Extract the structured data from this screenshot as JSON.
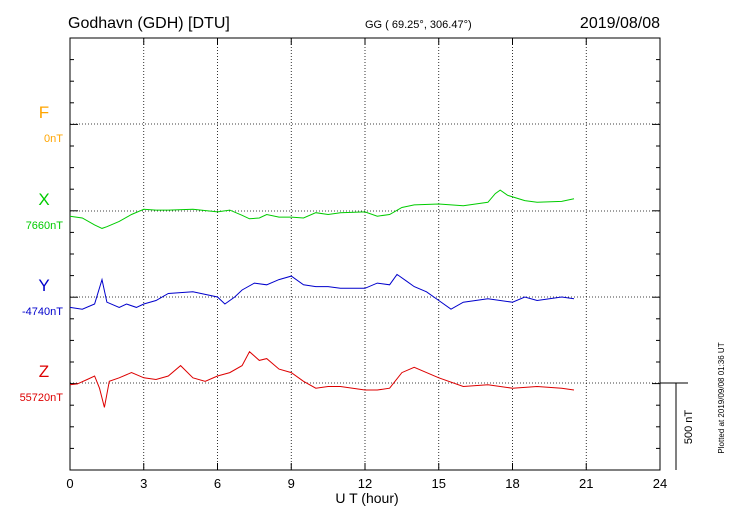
{
  "header": {
    "station": "Godhavn (GDH)  [DTU]",
    "coords": "GG ( 69.25°, 306.47°)",
    "date": "2019/08/08"
  },
  "side_note": "Plotted at 2019/09/08 01:36 UT",
  "scale_bar_label": "500 nT",
  "colors": {
    "F": "#ffa500",
    "X": "#00cc00",
    "Y": "#0000cc",
    "Z": "#dd0000",
    "axis": "#000000"
  },
  "chart_data": {
    "type": "line",
    "title": "Godhavn (GDH)  [DTU]",
    "xlabel": "U T (hour)",
    "xlim": [
      0,
      24
    ],
    "xticks": [
      0,
      3,
      6,
      9,
      12,
      15,
      18,
      21,
      24
    ],
    "scale_bar_nT": 500,
    "grid": true,
    "series": [
      {
        "name": "F",
        "baseline_label": "0nT",
        "x": [],
        "y": []
      },
      {
        "name": "X",
        "baseline_label": "7660nT",
        "x": [
          0,
          0.5,
          1,
          1.3,
          1.5,
          2,
          2.5,
          3,
          3.5,
          4,
          5,
          6,
          6.5,
          7,
          7.3,
          7.7,
          8,
          8.5,
          9,
          9.5,
          10,
          10.5,
          11,
          12,
          12.5,
          13,
          13.5,
          14,
          15,
          16,
          17,
          17.3,
          17.5,
          17.8,
          18.5,
          19,
          20,
          20.5
        ],
        "y": [
          -30,
          -40,
          -80,
          -100,
          -90,
          -60,
          -20,
          10,
          5,
          5,
          10,
          -5,
          5,
          -25,
          -45,
          -40,
          -20,
          -35,
          -35,
          -40,
          -10,
          -20,
          -10,
          -5,
          -30,
          -20,
          20,
          35,
          40,
          30,
          50,
          100,
          120,
          90,
          60,
          50,
          55,
          70
        ]
      },
      {
        "name": "Y",
        "baseline_label": "-4740nT",
        "x": [
          0,
          0.5,
          1,
          1.3,
          1.5,
          2,
          2.3,
          2.7,
          3,
          3.5,
          4,
          5,
          6,
          6.3,
          6.7,
          7,
          7.5,
          8,
          8.5,
          9,
          9.5,
          10,
          10.5,
          11,
          12,
          12.5,
          13,
          13.3,
          13.7,
          14,
          14.5,
          15,
          15.5,
          16,
          17,
          18,
          18.5,
          19,
          20,
          20.5
        ],
        "y": [
          -60,
          -70,
          -40,
          100,
          -30,
          -60,
          -40,
          -60,
          -40,
          -20,
          20,
          30,
          0,
          -40,
          0,
          40,
          80,
          70,
          100,
          120,
          70,
          60,
          60,
          50,
          50,
          80,
          70,
          130,
          90,
          60,
          30,
          -20,
          -70,
          -30,
          -10,
          -30,
          0,
          -20,
          0,
          -10
        ]
      },
      {
        "name": "Z",
        "baseline_label": "55720nT",
        "x": [
          0,
          0.3,
          0.7,
          1,
          1.2,
          1.4,
          1.6,
          2,
          2.5,
          3,
          3.5,
          4,
          4.5,
          5,
          5.5,
          6,
          6.5,
          7,
          7.3,
          7.7,
          8,
          8.5,
          9,
          9.5,
          10,
          10.5,
          11,
          12,
          12.5,
          13,
          13.5,
          14,
          14.5,
          15,
          16,
          17,
          18,
          19,
          20,
          20.5
        ],
        "y": [
          -10,
          -5,
          20,
          40,
          -30,
          -140,
          10,
          30,
          60,
          30,
          20,
          40,
          100,
          30,
          10,
          40,
          60,
          100,
          180,
          130,
          140,
          80,
          60,
          10,
          -30,
          -20,
          -20,
          -40,
          -40,
          -30,
          60,
          90,
          60,
          30,
          -20,
          -10,
          -30,
          -20,
          -30,
          -40
        ]
      }
    ]
  }
}
